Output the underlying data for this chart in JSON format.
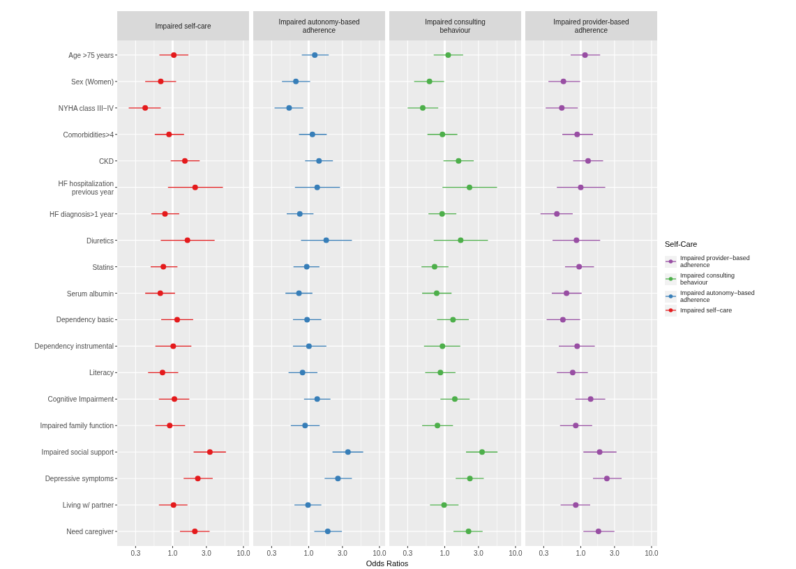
{
  "chart_data": [
    {
      "type": "scatter",
      "orientation": "horizontal",
      "title": "Impaired self-care",
      "legend_title": "Self-Care",
      "legend": "right",
      "marker": "circle",
      "grid": true,
      "log": "x",
      "xlim": [
        0.165,
        12
      ],
      "xticks": [
        {
          "value": 0.3,
          "label": "0.3"
        },
        {
          "value": 1,
          "label": "1.0"
        },
        {
          "value": 3,
          "label": "3.0"
        },
        {
          "value": 10,
          "label": "10.0"
        }
      ],
      "ref_lines": [
        {
          "axis": "x",
          "value": 1,
          "color": "#ffffff"
        }
      ],
      "categories": [
        "Age >75 years",
        "Sex (Women)",
        "NYHA class III−IV",
        "Comorbidities>4",
        "CKD",
        "HF hospitalization\nprevious year",
        "HF diagnosis>1 year",
        "Diuretics",
        "Statins",
        "Serum albumin",
        "Dependency basic",
        "Dependency instrumental",
        "Literacy",
        "Cognitive Impairment",
        "Impaired family function",
        "Impaired social support",
        "Depressive symptoms",
        "Living w/ partner",
        "Need caregiver"
      ],
      "series": [
        {
          "name": "Impaired self−care",
          "color": "#e41a1c",
          "values": [
            1.04,
            0.68,
            0.41,
            0.89,
            1.49,
            2.08,
            0.78,
            1.62,
            0.74,
            0.67,
            1.16,
            1.02,
            0.72,
            1.06,
            0.91,
            3.36,
            2.27,
            1.03,
            2.06
          ],
          "errors": [
            [
              0.65,
              1.67
            ],
            [
              0.41,
              1.12
            ],
            [
              0.24,
              0.68
            ],
            [
              0.56,
              1.45
            ],
            [
              0.94,
              2.41
            ],
            [
              0.86,
              5.13
            ],
            [
              0.5,
              1.24
            ],
            [
              0.68,
              3.92
            ],
            [
              0.49,
              1.17
            ],
            [
              0.41,
              1.08
            ],
            [
              0.69,
              1.95
            ],
            [
              0.57,
              1.84
            ],
            [
              0.45,
              1.2
            ],
            [
              0.64,
              1.72
            ],
            [
              0.57,
              1.5
            ],
            [
              1.98,
              5.66
            ],
            [
              1.43,
              3.68
            ],
            [
              0.64,
              1.62
            ],
            [
              1.27,
              3.33
            ]
          ]
        }
      ]
    },
    {
      "type": "scatter",
      "orientation": "horizontal",
      "title": "Impaired autonomy-based adherence",
      "xlabel": "Odds Ratios",
      "legend": "right",
      "marker": "circle",
      "grid": true,
      "log": "x",
      "tick_labels": "x",
      "xlim": [
        0.165,
        12
      ],
      "xticks": [
        {
          "value": 0.3,
          "label": "0.3"
        },
        {
          "value": 1,
          "label": "1.0"
        },
        {
          "value": 3,
          "label": "3.0"
        },
        {
          "value": 10,
          "label": "10.0"
        }
      ],
      "ref_lines": [
        {
          "axis": "x",
          "value": 1,
          "color": "#ffffff"
        }
      ],
      "series": [
        {
          "name": "Impaired autonomy−based adherence",
          "color": "#377eb8",
          "values": [
            1.22,
            0.66,
            0.53,
            1.13,
            1.4,
            1.32,
            0.75,
            1.77,
            0.94,
            0.73,
            0.95,
            1.01,
            0.82,
            1.32,
            0.89,
            3.59,
            2.59,
            0.98,
            1.86
          ],
          "errors": [
            [
              0.8,
              1.92
            ],
            [
              0.42,
              1.05
            ],
            [
              0.33,
              0.84
            ],
            [
              0.73,
              1.8
            ],
            [
              0.89,
              2.2
            ],
            [
              0.64,
              2.77
            ],
            [
              0.49,
              1.17
            ],
            [
              0.78,
              4.08
            ],
            [
              0.61,
              1.42
            ],
            [
              0.47,
              1.13
            ],
            [
              0.6,
              1.51
            ],
            [
              0.6,
              1.78
            ],
            [
              0.52,
              1.33
            ],
            [
              0.86,
              2.03
            ],
            [
              0.56,
              1.43
            ],
            [
              2.17,
              5.89
            ],
            [
              1.68,
              4.08
            ],
            [
              0.63,
              1.51
            ],
            [
              1.2,
              2.95
            ]
          ]
        }
      ]
    },
    {
      "type": "scatter",
      "orientation": "horizontal",
      "title": "Impaired consulting behaviour",
      "legend": "right",
      "marker": "circle",
      "grid": true,
      "log": "x",
      "tick_labels": "x",
      "xlim": [
        0.165,
        12
      ],
      "xticks": [
        {
          "value": 0.3,
          "label": "0.3"
        },
        {
          "value": 1,
          "label": "1.0"
        },
        {
          "value": 3,
          "label": "3.0"
        },
        {
          "value": 10,
          "label": "10.0"
        }
      ],
      "ref_lines": [
        {
          "axis": "x",
          "value": 1,
          "color": "#ffffff"
        }
      ],
      "series": [
        {
          "name": "Impaired consulting behaviour",
          "color": "#4daf4a",
          "values": [
            1.12,
            0.61,
            0.49,
            0.93,
            1.57,
            2.24,
            0.92,
            1.68,
            0.72,
            0.77,
            1.31,
            0.93,
            0.87,
            1.39,
            0.79,
            3.37,
            2.27,
            0.98,
            2.17
          ],
          "errors": [
            [
              0.7,
              1.82
            ],
            [
              0.37,
              0.98
            ],
            [
              0.3,
              0.81
            ],
            [
              0.57,
              1.51
            ],
            [
              0.96,
              2.57
            ],
            [
              0.93,
              5.48
            ],
            [
              0.59,
              1.46
            ],
            [
              0.7,
              4.08
            ],
            [
              0.47,
              1.13
            ],
            [
              0.48,
              1.25
            ],
            [
              0.78,
              2.19
            ],
            [
              0.51,
              1.66
            ],
            [
              0.53,
              1.42
            ],
            [
              0.87,
              2.25
            ],
            [
              0.48,
              1.31
            ],
            [
              2.0,
              5.57
            ],
            [
              1.43,
              3.56
            ],
            [
              0.62,
              1.57
            ],
            [
              1.33,
              3.43
            ]
          ]
        }
      ]
    },
    {
      "type": "scatter",
      "orientation": "horizontal",
      "title": "Impaired provider-based adherence",
      "legend": "right",
      "marker": "circle",
      "grid": true,
      "log": "x",
      "tick_labels": "x",
      "xlim": [
        0.165,
        12
      ],
      "xticks": [
        {
          "value": 0.3,
          "label": "0.3"
        },
        {
          "value": 1,
          "label": "1.0"
        },
        {
          "value": 3,
          "label": "3.0"
        },
        {
          "value": 10,
          "label": "10.0"
        }
      ],
      "ref_lines": [
        {
          "axis": "x",
          "value": 1,
          "color": "#ffffff"
        }
      ],
      "series": [
        {
          "name": "Impaired provider−based adherence",
          "color": "#984ea3",
          "values": [
            1.15,
            0.57,
            0.54,
            0.89,
            1.27,
            1.0,
            0.46,
            0.87,
            0.95,
            0.63,
            0.56,
            0.89,
            0.77,
            1.38,
            0.85,
            1.85,
            2.34,
            0.85,
            1.78
          ],
          "errors": [
            [
              0.72,
              1.88
            ],
            [
              0.35,
              0.98
            ],
            [
              0.32,
              0.91
            ],
            [
              0.55,
              1.49
            ],
            [
              0.78,
              2.07
            ],
            [
              0.46,
              2.22
            ],
            [
              0.27,
              0.77
            ],
            [
              0.4,
              1.88
            ],
            [
              0.6,
              1.54
            ],
            [
              0.39,
              1.03
            ],
            [
              0.33,
              0.98
            ],
            [
              0.49,
              1.58
            ],
            [
              0.46,
              1.26
            ],
            [
              0.84,
              2.22
            ],
            [
              0.51,
              1.45
            ],
            [
              1.09,
              3.2
            ],
            [
              1.49,
              3.78
            ],
            [
              0.52,
              1.36
            ],
            [
              1.09,
              2.99
            ]
          ]
        }
      ]
    }
  ]
}
